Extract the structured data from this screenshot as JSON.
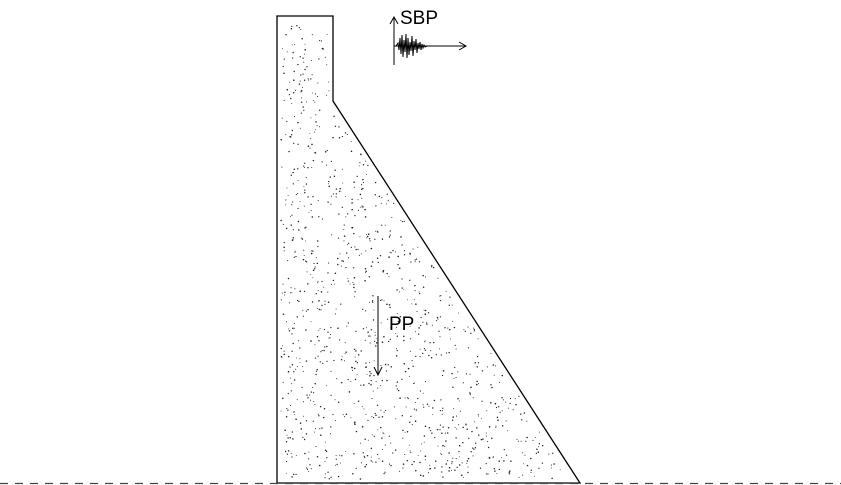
{
  "diagram": {
    "labels": {
      "seismic_load": "SBP",
      "self_weight": "PP"
    }
  }
}
